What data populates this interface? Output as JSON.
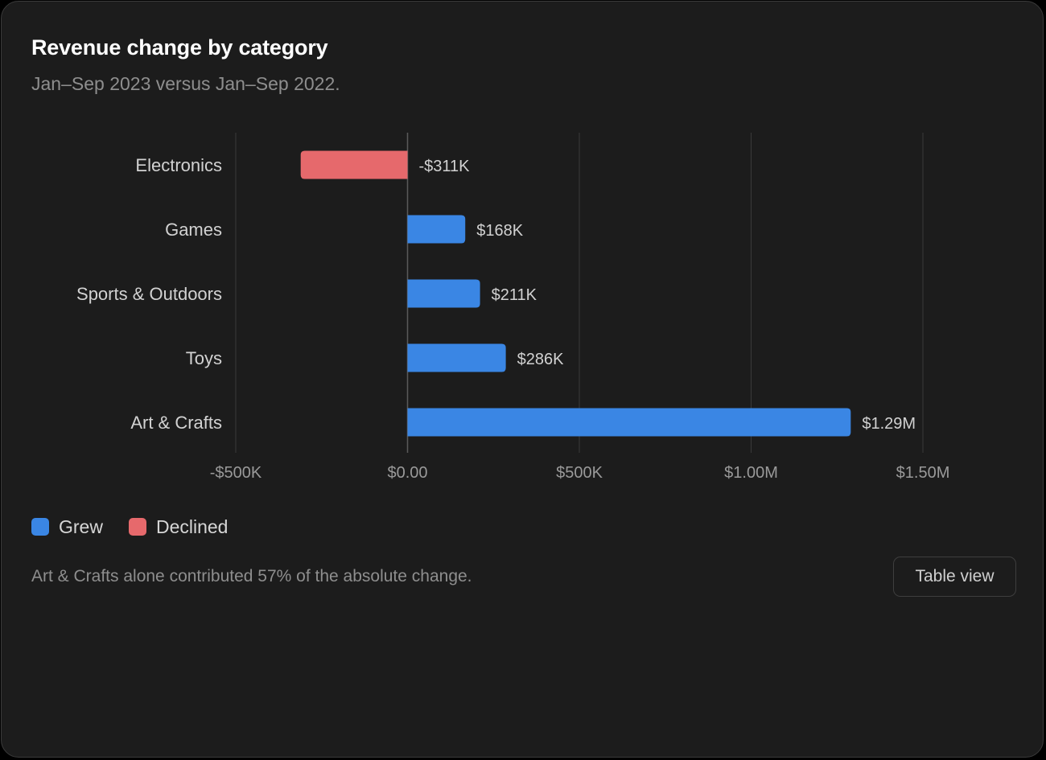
{
  "card": {
    "title": "Revenue change by category",
    "subtitle": "Jan–Sep 2023 versus Jan–Sep 2022.",
    "footnote": "Art & Crafts alone contributed 57% of the absolute change.",
    "table_view_label": "Table view"
  },
  "colors": {
    "grew": "#3a86e4",
    "declined": "#e6696c",
    "background": "#1c1c1c",
    "gridline": "#3a3a3a",
    "zero_line": "#5a5a5a"
  },
  "legend": [
    {
      "label": "Grew",
      "color": "#3a86e4"
    },
    {
      "label": "Declined",
      "color": "#e6696c"
    }
  ],
  "chart_data": {
    "type": "bar",
    "orientation": "horizontal",
    "categories": [
      "Electronics",
      "Games",
      "Sports & Outdoors",
      "Toys",
      "Art & Crafts"
    ],
    "values": [
      -311000,
      168000,
      211000,
      286000,
      1290000
    ],
    "value_labels": [
      "-$311K",
      "$168K",
      "$211K",
      "$286K",
      "$1.29M"
    ],
    "xticks": [
      -500000,
      0,
      500000,
      1000000,
      1500000
    ],
    "xtick_labels": [
      "-$500K",
      "$0.00",
      "$500K",
      "$1.00M",
      "$1.50M"
    ],
    "xlim": [
      -500000,
      1500000
    ],
    "grid": true,
    "legend_position": "bottom-left"
  }
}
